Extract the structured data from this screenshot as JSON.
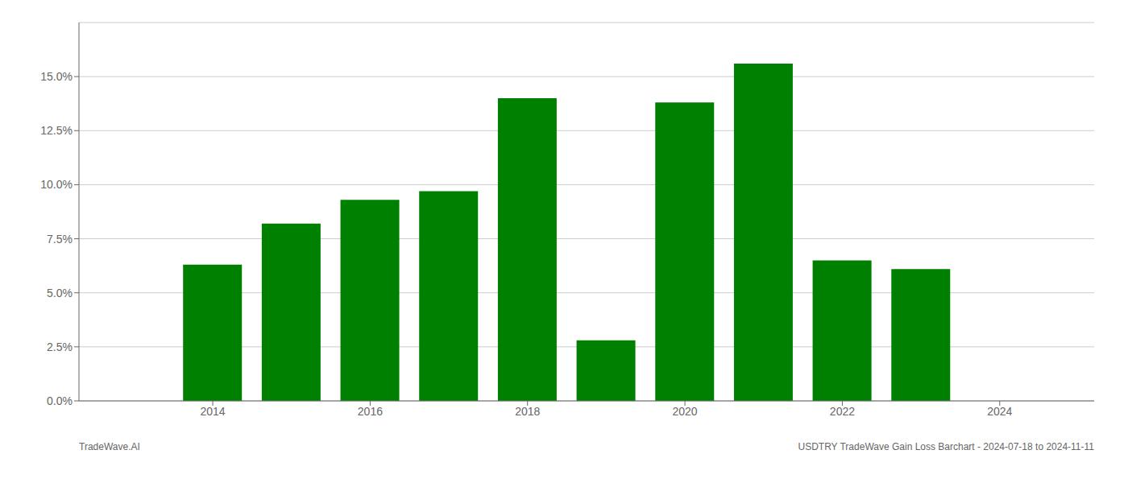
{
  "chart_data": {
    "type": "bar",
    "x": [
      2014,
      2015,
      2016,
      2017,
      2018,
      2019,
      2020,
      2021,
      2022,
      2023
    ],
    "values": [
      0.063,
      0.082,
      0.093,
      0.097,
      0.14,
      0.028,
      0.138,
      0.156,
      0.065,
      0.061
    ],
    "color": "#008000",
    "xlim": [
      2012.3,
      2025.2
    ],
    "xticks": [
      2014,
      2016,
      2018,
      2020,
      2022,
      2024
    ],
    "ylim": [
      0,
      0.175
    ],
    "yticks": [
      {
        "value": 0.0,
        "label": "0.0%"
      },
      {
        "value": 0.025,
        "label": "2.5%"
      },
      {
        "value": 0.05,
        "label": "5.0%"
      },
      {
        "value": 0.075,
        "label": "7.5%"
      },
      {
        "value": 0.1,
        "label": "10.0%"
      },
      {
        "value": 0.125,
        "label": "12.5%"
      },
      {
        "value": 0.15,
        "label": "15.0%"
      }
    ],
    "grid": "y",
    "annotations": [
      "TradeWave.AI",
      "USDTRY TradeWave Gain Loss Barchart - 2024-07-18 to 2024-11-11"
    ]
  }
}
